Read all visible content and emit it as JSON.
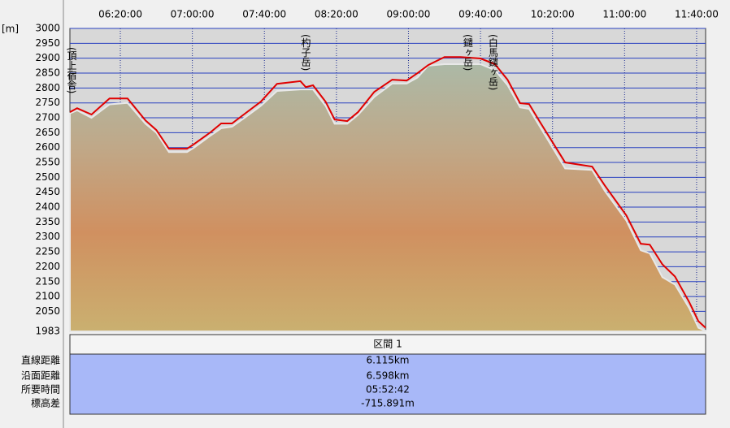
{
  "chart_data": {
    "type": "profile",
    "ylabel": "[m]",
    "xlim": [
      352,
      705
    ],
    "xticks": [
      {
        "value": 380,
        "label": "06:20:00"
      },
      {
        "value": 420,
        "label": "07:00:00"
      },
      {
        "value": 460,
        "label": "07:40:00"
      },
      {
        "value": 500,
        "label": "08:20:00"
      },
      {
        "value": 540,
        "label": "09:00:00"
      },
      {
        "value": 580,
        "label": "09:40:00"
      },
      {
        "value": 620,
        "label": "10:20:00"
      },
      {
        "value": 660,
        "label": "11:00:00"
      },
      {
        "value": 700,
        "label": "11:40:00"
      }
    ],
    "ylim": [
      1983,
      3000
    ],
    "yticks": [
      1983,
      2050,
      2100,
      2150,
      2200,
      2250,
      2300,
      2350,
      2400,
      2450,
      2500,
      2550,
      2600,
      2650,
      2700,
      2750,
      2800,
      2850,
      2900,
      2950,
      3000
    ],
    "grid": true,
    "x": [
      352,
      356,
      364,
      374,
      384,
      394,
      400,
      407,
      417,
      421,
      430,
      436,
      442,
      449,
      458,
      467,
      480,
      483,
      487,
      494,
      499,
      506,
      512,
      521,
      531,
      539,
      545,
      551,
      560,
      569,
      580,
      588,
      595,
      602,
      607,
      613,
      627,
      642,
      649,
      661,
      669,
      674,
      681,
      688,
      696,
      701,
      705
    ],
    "series": [
      {
        "type": "area",
        "color": "#a8bca8",
        "values": [
          2715,
          2725,
          2700,
          2745,
          2750,
          2680,
          2650,
          2585,
          2585,
          2600,
          2640,
          2665,
          2670,
          2700,
          2740,
          2790,
          2795,
          2795,
          2795,
          2740,
          2680,
          2680,
          2710,
          2770,
          2815,
          2815,
          2835,
          2875,
          2880,
          2880,
          2880,
          2860,
          2810,
          2735,
          2730,
          2670,
          2530,
          2525,
          2455,
          2355,
          2255,
          2245,
          2165,
          2140,
          2060,
          1995,
          1985
        ]
      },
      {
        "type": "line",
        "color": "#e00000",
        "values": [
          2719,
          2732,
          2711,
          2765,
          2765,
          2691,
          2659,
          2596,
          2596,
          2612,
          2651,
          2681,
          2681,
          2713,
          2754,
          2814,
          2823,
          2803,
          2809,
          2754,
          2694,
          2689,
          2719,
          2787,
          2828,
          2825,
          2850,
          2877,
          2904,
          2904,
          2899,
          2880,
          2828,
          2749,
          2746,
          2686,
          2550,
          2536,
          2473,
          2372,
          2277,
          2274,
          2208,
          2167,
          2080,
          2017,
          1995
        ]
      }
    ],
    "annotations": [
      {
        "text": "(頂上宿舎)",
        "x": 352
      },
      {
        "text": "(杓子岳)",
        "x": 482
      },
      {
        "text": "(鑓ヶ岳)",
        "x": 572
      },
      {
        "text": "(白馬鑓ヶ岳)",
        "x": 586
      }
    ]
  },
  "table": {
    "header": "区間 1",
    "rows": [
      [
        "直線距離",
        "6.115km"
      ],
      [
        "沿面距離",
        "6.598km"
      ],
      [
        "所要時間",
        "05:52:42"
      ],
      [
        "標高差",
        "-715.891m"
      ]
    ]
  }
}
